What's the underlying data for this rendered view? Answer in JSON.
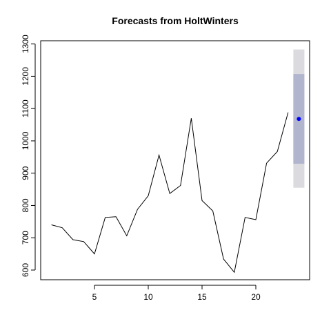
{
  "chart_data": {
    "type": "line",
    "title": "Forecasts from HoltWinters",
    "xlabel": "",
    "ylabel": "",
    "xlim": [
      0,
      25
    ],
    "ylim": [
      570,
      1310
    ],
    "x_ticks": [
      5,
      10,
      15,
      20
    ],
    "y_ticks": [
      600,
      700,
      800,
      900,
      1000,
      1100,
      1200,
      1300
    ],
    "series": [
      {
        "x": [
          1,
          2,
          3,
          4,
          5,
          6,
          7,
          8,
          9,
          10,
          11,
          12,
          13,
          14,
          15,
          16,
          17,
          18,
          19,
          20,
          21,
          22,
          23
        ],
        "values": [
          740,
          731,
          694,
          688,
          650,
          763,
          765,
          706,
          788,
          830,
          956,
          837,
          862,
          1070,
          815,
          783,
          634,
          593,
          763,
          756,
          931,
          967,
          1088
        ]
      }
    ],
    "forecast": {
      "x": 24,
      "point": 1068,
      "interval_80": [
        929,
        1207
      ],
      "interval_95": [
        855,
        1283
      ]
    },
    "colors": {
      "line": "#000000",
      "forecast_point": "#0000ff",
      "interval_80": "#b1b5ce",
      "interval_95": "#dbdbdf"
    }
  }
}
